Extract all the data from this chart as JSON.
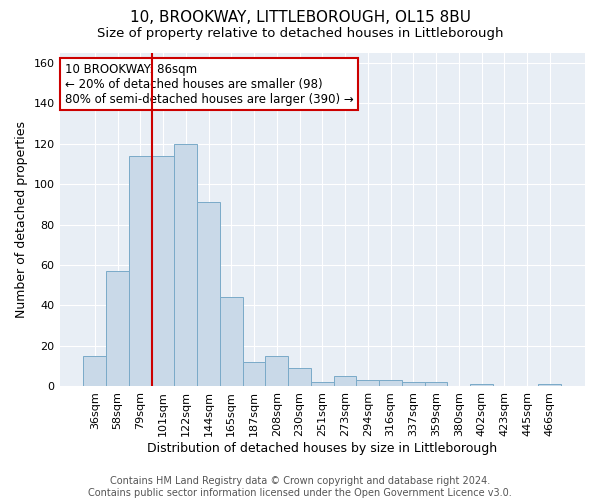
{
  "title": "10, BROOKWAY, LITTLEBOROUGH, OL15 8BU",
  "subtitle": "Size of property relative to detached houses in Littleborough",
  "xlabel": "Distribution of detached houses by size in Littleborough",
  "ylabel": "Number of detached properties",
  "categories": [
    "36sqm",
    "58sqm",
    "79sqm",
    "101sqm",
    "122sqm",
    "144sqm",
    "165sqm",
    "187sqm",
    "208sqm",
    "230sqm",
    "251sqm",
    "273sqm",
    "294sqm",
    "316sqm",
    "337sqm",
    "359sqm",
    "380sqm",
    "402sqm",
    "423sqm",
    "445sqm",
    "466sqm"
  ],
  "values": [
    15,
    57,
    114,
    114,
    120,
    91,
    44,
    12,
    15,
    9,
    2,
    5,
    3,
    3,
    2,
    2,
    0,
    1,
    0,
    0,
    1
  ],
  "bar_color": "#c9d9e8",
  "bar_edge_color": "#7aaac8",
  "bar_edge_width": 0.7,
  "red_line_x": 2.5,
  "red_line_color": "#cc0000",
  "annotation_text": "10 BROOKWAY: 86sqm\n← 20% of detached houses are smaller (98)\n80% of semi-detached houses are larger (390) →",
  "annotation_box_color": "white",
  "annotation_box_edge_color": "#cc0000",
  "ylim": [
    0,
    165
  ],
  "yticks": [
    0,
    20,
    40,
    60,
    80,
    100,
    120,
    140,
    160
  ],
  "background_color": "#e8eef5",
  "footer_text": "Contains HM Land Registry data © Crown copyright and database right 2024.\nContains public sector information licensed under the Open Government Licence v3.0.",
  "title_fontsize": 11,
  "subtitle_fontsize": 9.5,
  "xlabel_fontsize": 9,
  "ylabel_fontsize": 9,
  "footer_fontsize": 7,
  "annotation_fontsize": 8.5,
  "tick_fontsize": 8
}
